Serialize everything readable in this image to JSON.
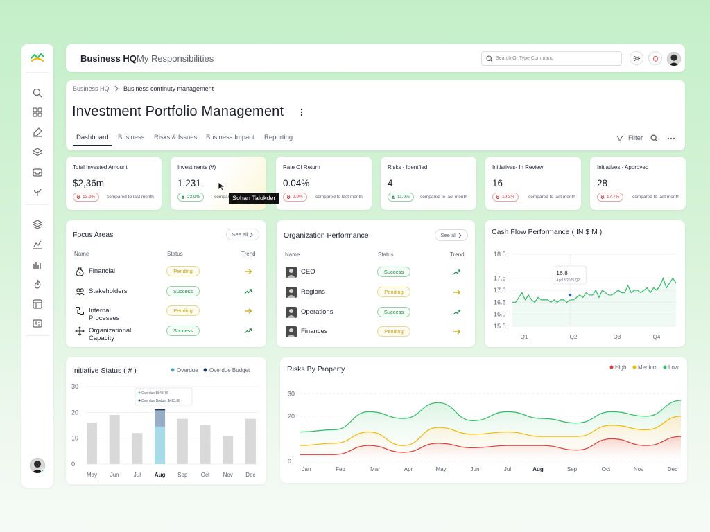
{
  "sidebar": {
    "icons": [
      "search-icon",
      "grid-icon",
      "edit-icon",
      "layers-icon",
      "inbox-icon",
      "plant-icon",
      "stack-icon",
      "line-chart-icon",
      "bar-chart-icon",
      "flame-icon",
      "layout-icon",
      "id-card-icon"
    ]
  },
  "header": {
    "title": "Business HQ",
    "subtitle": "My Responsibilities",
    "search_placeholder": "Search Or Type Command"
  },
  "breadcrumb": {
    "root": "Business HQ",
    "current": "Business continuty management"
  },
  "page": {
    "title": "Investment Portfolio Management"
  },
  "tabs": [
    {
      "label": "Dashboard",
      "active": true
    },
    {
      "label": "Business",
      "active": false
    },
    {
      "label": "Risks & Issues",
      "active": false
    },
    {
      "label": "Business Impact",
      "active": false
    },
    {
      "label": "Reporting",
      "active": false
    }
  ],
  "toolbar": {
    "filter_label": "Filter"
  },
  "tooltip": "Sohan Talukder",
  "kpis": [
    {
      "label": "Total Invested Amount",
      "value": "$2,36m",
      "change": "13.9%",
      "direction": "down",
      "compare": "compared to last month"
    },
    {
      "label": "Investments (#)",
      "value": "1,231",
      "change": "23.9%",
      "direction": "up",
      "compare": "compared to last month"
    },
    {
      "label": "Rate Of Return",
      "value": "0.04%",
      "change": "9.9%",
      "direction": "down",
      "compare": "compared to last month"
    },
    {
      "label": "Risks - Identfied",
      "value": "4",
      "change": "11.9%",
      "direction": "up",
      "compare": "compared to last month"
    },
    {
      "label": "Initiatives- In Review",
      "value": "16",
      "change": "19.3%",
      "direction": "down",
      "compare": "compared to last month"
    },
    {
      "label": "Initiatives - Approved",
      "value": "28",
      "change": "17.7%",
      "direction": "down",
      "compare": "compared to last month"
    }
  ],
  "focus_areas": {
    "title": "Focus Areas",
    "see_all": "See all",
    "columns": [
      "Name",
      "Status",
      "Trend"
    ],
    "rows": [
      {
        "name": "Financial",
        "status": "Pending",
        "trend": "flat",
        "icon": "money-bag-icon"
      },
      {
        "name": "Stakeholders",
        "status": "Success",
        "trend": "up",
        "icon": "users-icon"
      },
      {
        "name": "Internal Processes",
        "status": "Pending",
        "trend": "flat",
        "icon": "process-icon"
      },
      {
        "name": "Organizational Capacity",
        "status": "Success",
        "trend": "up",
        "icon": "move-icon"
      }
    ]
  },
  "org_performance": {
    "title": "Organization Performance",
    "see_all": "See all",
    "columns": [
      "Name",
      "Status",
      "Trend"
    ],
    "rows": [
      {
        "name": "CEO",
        "status": "Success",
        "trend": "up"
      },
      {
        "name": "Regions",
        "status": "Pending",
        "trend": "flat"
      },
      {
        "name": "Operations",
        "status": "Success",
        "trend": "up"
      },
      {
        "name": "Finances",
        "status": "Pending",
        "trend": "flat"
      }
    ]
  },
  "colors": {
    "success": "#1e8c45",
    "pending": "#c9a40b",
    "danger": "#d33333",
    "high": "#e53935",
    "medium": "#f2b705",
    "low": "#2dbd63"
  },
  "chart_data": [
    {
      "type": "line",
      "title": "Cash Flow Performance ( IN $ M )",
      "x_ticks": [
        "Q1",
        "Q2",
        "Q3",
        "Q4"
      ],
      "y_ticks": [
        "18.5",
        "17.5",
        "17.0",
        "16.5",
        "16.0",
        "15.5"
      ],
      "ylim": [
        15.5,
        18.5
      ],
      "values": [
        16.5,
        16.5,
        16.7,
        16.9,
        16.6,
        16.8,
        16.6,
        16.5,
        16.7,
        16.6,
        16.6,
        16.6,
        16.5,
        16.6,
        16.5,
        16.6,
        16.6,
        16.5,
        16.6,
        16.6,
        16.7,
        16.8,
        16.7,
        16.9,
        16.8,
        16.8,
        17.0,
        16.7,
        17.0,
        16.9,
        16.8,
        16.8,
        16.9,
        17.0,
        16.9,
        16.9,
        17.2,
        16.9,
        17.0,
        17.0,
        16.9,
        17.0,
        17.1,
        16.9,
        17.1,
        17.0,
        17.2,
        17.5,
        17.1,
        17.3,
        17.5,
        17.3
      ],
      "callout": {
        "value": "16.8",
        "date": "Apr13,2025 Q2"
      },
      "grid": true
    },
    {
      "type": "bar",
      "title": "Initiative Status ( # )",
      "legend": [
        "Overdue",
        "Overdue Budget"
      ],
      "categories": [
        "May",
        "Jun",
        "Jul",
        "Aug",
        "Sep",
        "Oct",
        "Nov",
        "Dec"
      ],
      "values": [
        16,
        19,
        12,
        21,
        17.5,
        15,
        11,
        17.5
      ],
      "highlight": {
        "category": "Aug",
        "overdue": 14.5,
        "overdue_budget": 6.5
      },
      "y_ticks": [
        "30",
        "20",
        "10",
        "0"
      ],
      "ylim": [
        0,
        30
      ],
      "tooltip_lines": [
        "Overdue $543.76",
        "Overdue Budget $423.88"
      ]
    },
    {
      "type": "area",
      "title": "Risks By Property",
      "legend": [
        "High",
        "Medium",
        "Low"
      ],
      "x_ticks": [
        "Jan",
        "Feb",
        "Mar",
        "Apr",
        "May",
        "Jun",
        "Jul",
        "Aug",
        "Sep",
        "Oct",
        "Nov",
        "Dec"
      ],
      "y_ticks": [
        "30",
        "20",
        "0"
      ],
      "ylim": [
        0,
        35
      ],
      "series": [
        {
          "name": "Low",
          "values": [
            13,
            14,
            22,
            19,
            26,
            18,
            22,
            19,
            17,
            22,
            20,
            27
          ]
        },
        {
          "name": "Medium",
          "values": [
            7,
            8,
            13,
            7,
            15,
            12,
            13,
            11,
            11,
            16,
            14,
            20
          ]
        },
        {
          "name": "High",
          "values": [
            3,
            3,
            7,
            4,
            8,
            6,
            7,
            7,
            5,
            10,
            7,
            11
          ]
        }
      ]
    }
  ]
}
